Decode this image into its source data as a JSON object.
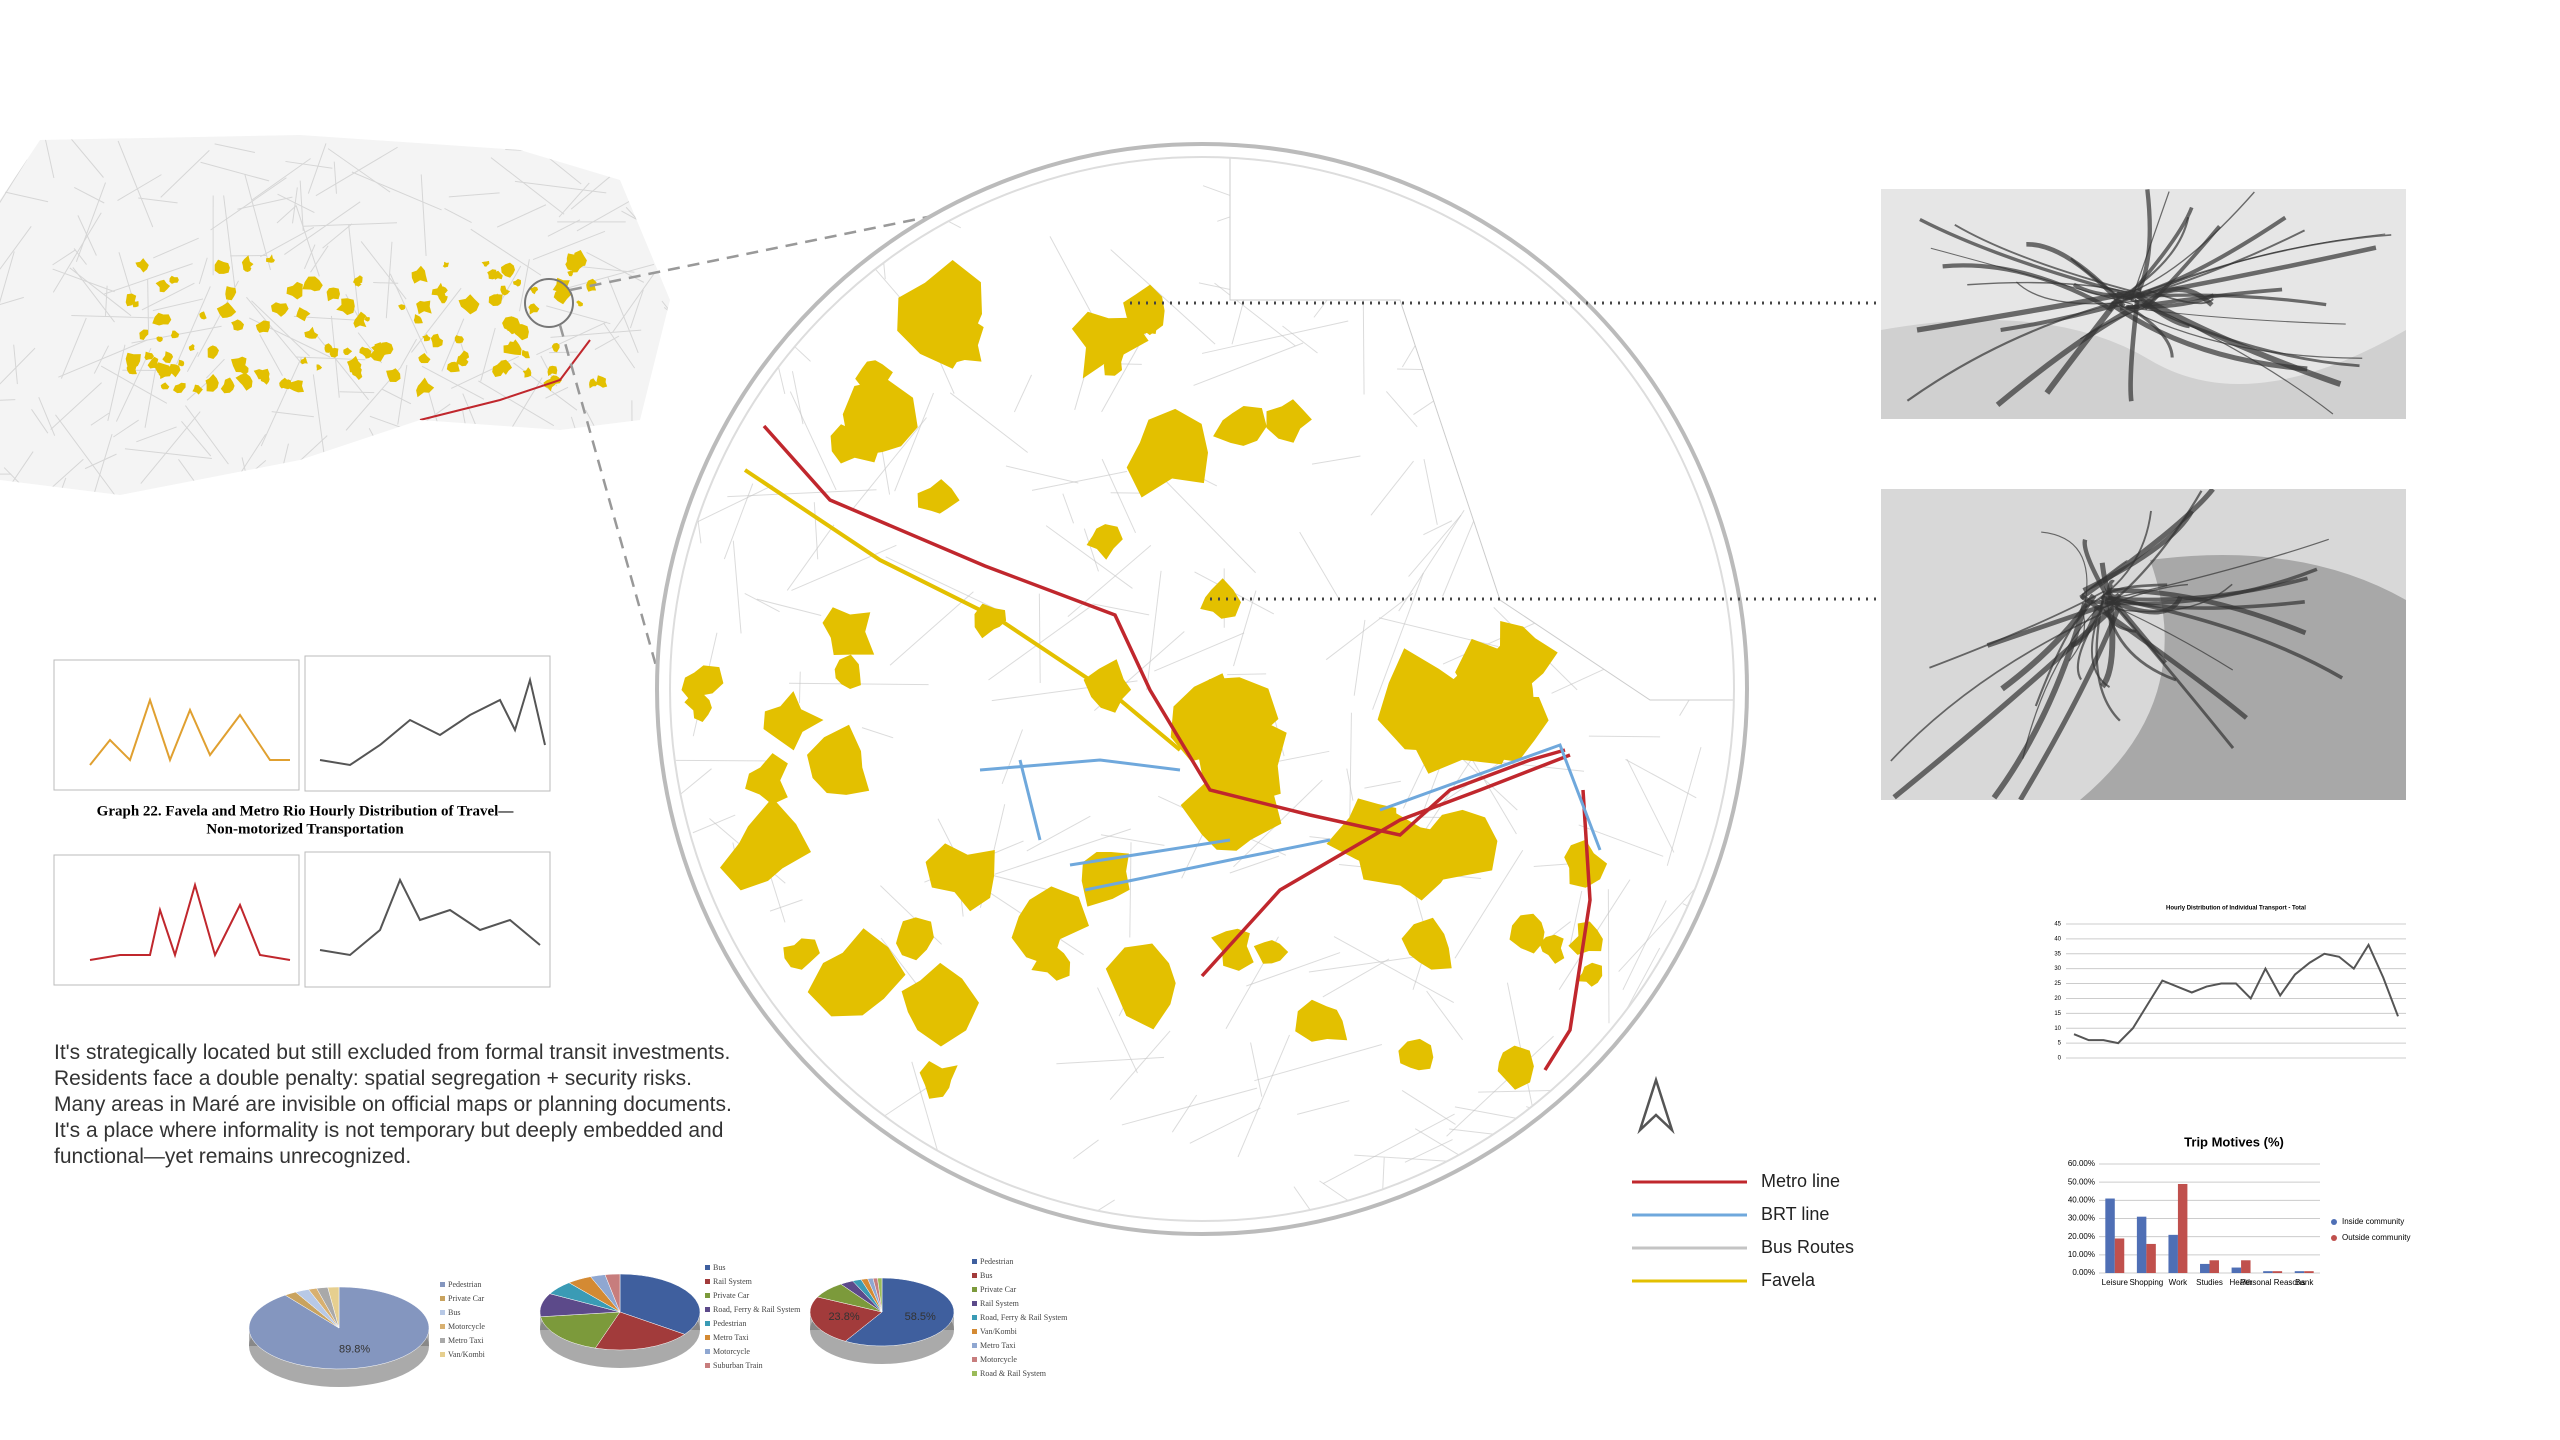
{
  "paragraph": [
    "It's strategically located but still excluded from formal transit investments.",
    "Residents face a double penalty: spatial segregation + security risks.",
    "Many areas in Maré are invisible on official maps or planning documents.",
    "It's a place where informality is not temporary but deeply embedded and",
    "functional—yet remains unrecognized."
  ],
  "graph_caption": [
    "Graph 22. Favela and Metro Rio Hourly Distribution of Travel—",
    "Non-motorized Transportation"
  ],
  "legend": [
    {
      "name": "Metro line",
      "color": "#c0272d"
    },
    {
      "name": "BRT line",
      "color": "#6fa8dc"
    },
    {
      "name": "Bus Routes",
      "color": "#c4c4c4"
    },
    {
      "name": "Favela",
      "color": "#e3c000"
    }
  ],
  "chart_data": [
    {
      "type": "line",
      "title": "Hourly Distribution of Individual Transport - Total",
      "color": "#555555",
      "values": [
        8,
        6,
        6,
        5,
        10,
        18,
        26,
        24,
        22,
        24,
        25,
        25,
        20,
        30,
        21,
        28,
        32,
        35,
        34,
        30,
        38,
        27,
        14
      ],
      "ylim": [
        0,
        45
      ],
      "yticks": [
        0,
        5,
        10,
        15,
        20,
        25,
        30,
        35,
        40,
        45
      ],
      "grid": true
    },
    {
      "type": "bar",
      "title": "Trip Motives (%)",
      "categories": [
        "Leisure",
        "Shopping",
        "Work",
        "Studies",
        "Health",
        "Personal Reasons",
        "Bank"
      ],
      "series": [
        {
          "name": "Inside community",
          "color": "#4f6fb5",
          "values": [
            41,
            31,
            21,
            5,
            3,
            1,
            1
          ]
        },
        {
          "name": "Outside community",
          "color": "#c0504d",
          "values": [
            19,
            16,
            49,
            7,
            7,
            1,
            1
          ]
        }
      ],
      "ylim": [
        0,
        60
      ],
      "yticks": [
        {
          "value": 0,
          "label": "0.00%"
        },
        {
          "value": 10,
          "label": "10.00%"
        },
        {
          "value": 20,
          "label": "20.00%"
        },
        {
          "value": 30,
          "label": "30.00%"
        },
        {
          "value": 40,
          "label": "40.00%"
        },
        {
          "value": 50,
          "label": "50.00%"
        },
        {
          "value": 60,
          "label": "60.00%"
        }
      ],
      "grid": true
    },
    {
      "type": "pie",
      "categories": [
        "Pedestrian",
        "Private Car",
        "Bus",
        "Motorcycle",
        "Metro Taxi",
        "Van/Kombi"
      ],
      "values": [
        89.8,
        2.2,
        2.5,
        1.5,
        2,
        2
      ],
      "value_labels": [
        "89.8%",
        null,
        null,
        null,
        null,
        null
      ],
      "colors": [
        "#8496bf",
        "#c9a35f",
        "#b8c9e6",
        "#d8b070",
        "#a9a9a9",
        "#e6cf8f"
      ]
    },
    {
      "type": "pie",
      "categories": [
        "Bus",
        "Rail System",
        "Private Car",
        "Road, Ferry & Rail System",
        "Pedestrian",
        "Metro Taxi",
        "Motorcycle",
        "Suburban Train"
      ],
      "values": [
        35,
        20,
        18,
        10,
        6,
        5,
        3,
        3
      ],
      "colors": [
        "#3f5f9e",
        "#a23b3b",
        "#7c9a3b",
        "#5c4a8a",
        "#3a9bb5",
        "#d48a33",
        "#8fa7d1",
        "#c77d7d"
      ]
    },
    {
      "type": "pie",
      "categories": [
        "Pedestrian",
        "Bus",
        "Private Car",
        "Rail System",
        "Road, Ferry & Rail System",
        "Van/Kombi",
        "Metro Taxi",
        "Motorcycle",
        "Road & Rail System"
      ],
      "values": [
        58.5,
        23.8,
        8,
        3,
        2,
        1.5,
        1.2,
        1,
        1
      ],
      "value_labels": [
        "58.5%",
        "23.8%",
        null,
        null,
        null,
        null,
        null,
        null,
        null
      ],
      "colors": [
        "#3f5f9e",
        "#a23b3b",
        "#7c9a3b",
        "#5c4a8a",
        "#3a9bb5",
        "#d48a33",
        "#8fa7d1",
        "#c77d7d",
        "#9bbb59"
      ]
    }
  ]
}
